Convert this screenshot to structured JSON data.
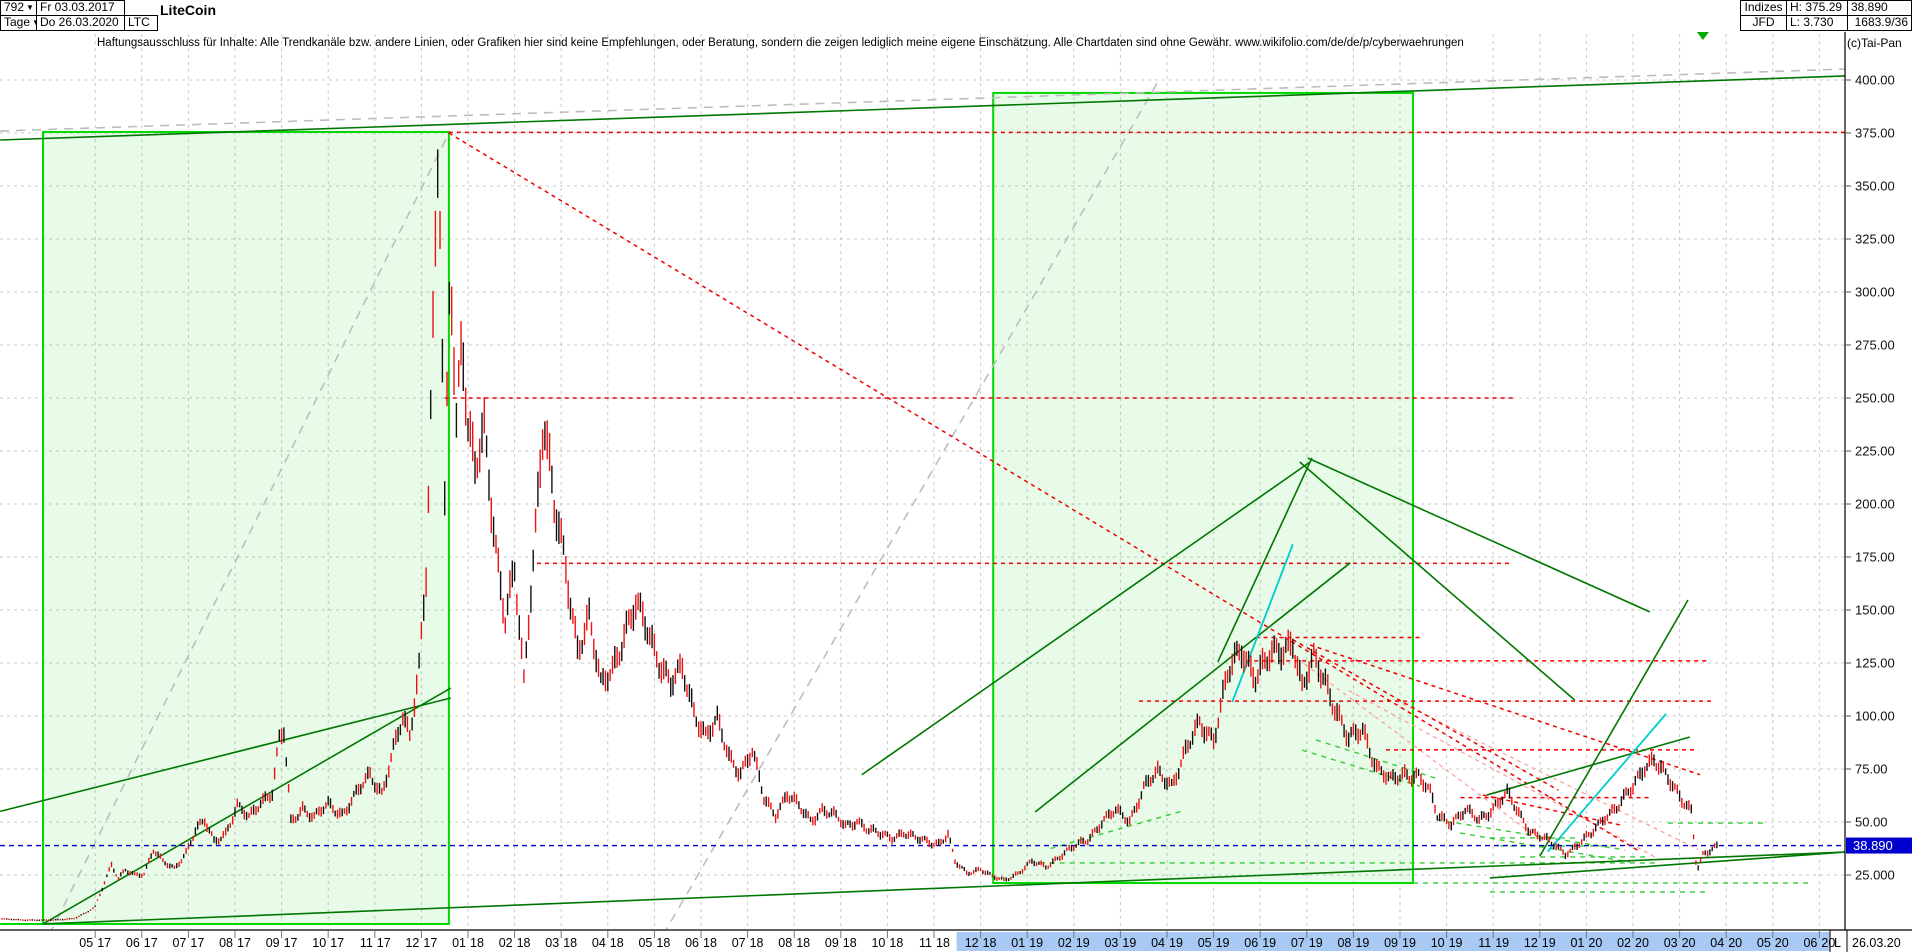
{
  "header": {
    "bars_count": "792",
    "period_label": "Tage",
    "date_from": "Fr 03.03.2017",
    "date_to": "Do 26.03.2020",
    "symbol": "LTC",
    "instrument_name": "LiteCoin",
    "exchange_label": "Indizes",
    "provider_label": "JFD",
    "high_label": "H: 375.29",
    "low_label": "L: 3.730",
    "last_price": "38.890",
    "volume_info": "1683.9/36",
    "copyright": "(c)Tai-Pan"
  },
  "disclaimer": "Haftungsausschluss für Inhalte: Alle Trendkanäle bzw. andere Linien, oder Grafiken hier sind keine Empfehlungen, oder Beratung, sondern die zeigen lediglich meine eigene Einschätzung. Alle Chartdaten sind ohne Gewähr.  www.wikifolio.com/de/de/p/cyberwaehrungen",
  "price_axis": {
    "ticks": [
      {
        "label": "400.00",
        "value": 400
      },
      {
        "label": "375.00",
        "value": 375
      },
      {
        "label": "350.00",
        "value": 350
      },
      {
        "label": "325.00",
        "value": 325
      },
      {
        "label": "300.00",
        "value": 300
      },
      {
        "label": "275.00",
        "value": 275
      },
      {
        "label": "250.00",
        "value": 250
      },
      {
        "label": "225.00",
        "value": 225
      },
      {
        "label": "200.00",
        "value": 200
      },
      {
        "label": "175.00",
        "value": 175
      },
      {
        "label": "150.00",
        "value": 150
      },
      {
        "label": "125.00",
        "value": 125
      },
      {
        "label": "100.00",
        "value": 100
      },
      {
        "label": "75.00",
        "value": 75
      },
      {
        "label": "50.00",
        "value": 50
      },
      {
        "label": "25.000",
        "value": 25
      }
    ],
    "current": {
      "label": "38.890",
      "value": 38.89
    }
  },
  "date_axis": {
    "ticks": [
      "05.17",
      "06.17",
      "07.17",
      "08.17",
      "09.17",
      "10.17",
      "11.17",
      "12.17",
      "01.18",
      "02.18",
      "03.18",
      "04.18",
      "05.18",
      "06.18",
      "07.18",
      "08.18",
      "09.18",
      "10.18",
      "11.18",
      "12.18",
      "01.19",
      "02.19",
      "03.19",
      "04.19",
      "05.19",
      "06.19",
      "07.19",
      "08.19",
      "09.19",
      "10.19",
      "11.19",
      "12.19",
      "01.20",
      "02.20",
      "03.20",
      "04.20",
      "05.20",
      "06.20"
    ],
    "highlight_start_label": "12.18",
    "corner_l": "L",
    "corner_date": "26.03.20"
  },
  "colors": {
    "candle_up": "#111111",
    "candle_down": "#ee1111",
    "grid": "#c8c8c8",
    "box_border": "#00d800",
    "box_fill": "rgba(0,210,0,0.09)",
    "green_dark": "#007700",
    "green_dashed": "#33cc33",
    "red": "#ee0000",
    "pink": "#ff9e9e",
    "gray_dashed": "#bdbdbd",
    "cyan": "#00cccc",
    "blue": "#0000cc",
    "axis_highlight": "#a9c9f5",
    "marker_green": "#00aa00"
  },
  "chart_data": {
    "type": "candlestick",
    "instrument": "LiteCoin (LTC)",
    "exchange": "Indizes / JFD",
    "timeframe": "daily (Tage), 792 bars",
    "date_range": [
      "2017-03-03",
      "2020-03-26"
    ],
    "high": 375.29,
    "low": 3.73,
    "last": 38.89,
    "ylim": [
      0,
      410
    ],
    "grid_step": 25,
    "x_unit": "months since 2017-03-01",
    "price_path": [
      [
        0,
        4.2
      ],
      [
        0.5,
        3.8
      ],
      [
        1.0,
        3.6
      ],
      [
        1.55,
        4.5
      ],
      [
        1.8,
        7
      ],
      [
        2.0,
        10
      ],
      [
        2.2,
        22
      ],
      [
        2.35,
        30
      ],
      [
        2.5,
        23
      ],
      [
        2.65,
        27
      ],
      [
        2.85,
        25
      ],
      [
        3.05,
        26
      ],
      [
        3.25,
        37
      ],
      [
        3.45,
        31
      ],
      [
        3.7,
        28
      ],
      [
        3.95,
        36
      ],
      [
        4.15,
        46
      ],
      [
        4.35,
        50
      ],
      [
        4.55,
        41
      ],
      [
        4.8,
        45
      ],
      [
        5.05,
        57
      ],
      [
        5.3,
        52
      ],
      [
        5.55,
        60
      ],
      [
        5.8,
        64
      ],
      [
        5.95,
        88
      ],
      [
        6.05,
        92
      ],
      [
        6.2,
        50
      ],
      [
        6.45,
        57
      ],
      [
        6.7,
        52
      ],
      [
        7.0,
        58
      ],
      [
        7.3,
        54
      ],
      [
        7.6,
        63
      ],
      [
        7.9,
        72
      ],
      [
        8.15,
        64
      ],
      [
        8.4,
        84
      ],
      [
        8.6,
        98
      ],
      [
        8.75,
        90
      ],
      [
        8.95,
        125
      ],
      [
        9.1,
        170
      ],
      [
        9.25,
        280
      ],
      [
        9.37,
        373
      ],
      [
        9.5,
        195
      ],
      [
        9.62,
        318
      ],
      [
        9.75,
        240
      ],
      [
        9.87,
        285
      ],
      [
        10.0,
        238
      ],
      [
        10.15,
        215
      ],
      [
        10.35,
        232
      ],
      [
        10.6,
        180
      ],
      [
        10.8,
        148
      ],
      [
        11.0,
        168
      ],
      [
        11.2,
        114
      ],
      [
        11.45,
        190
      ],
      [
        11.62,
        245
      ],
      [
        11.85,
        198
      ],
      [
        12.1,
        168
      ],
      [
        12.35,
        133
      ],
      [
        12.6,
        147
      ],
      [
        12.85,
        113
      ],
      [
        13.1,
        123
      ],
      [
        13.35,
        139
      ],
      [
        13.6,
        151
      ],
      [
        13.85,
        141
      ],
      [
        14.1,
        127
      ],
      [
        14.35,
        115
      ],
      [
        14.6,
        121
      ],
      [
        14.85,
        103
      ],
      [
        15.1,
        91
      ],
      [
        15.35,
        97
      ],
      [
        15.6,
        81
      ],
      [
        15.85,
        74
      ],
      [
        16.1,
        83
      ],
      [
        16.35,
        61
      ],
      [
        16.6,
        54
      ],
      [
        16.85,
        63
      ],
      [
        17.1,
        57
      ],
      [
        17.35,
        51
      ],
      [
        17.6,
        56
      ],
      [
        17.85,
        53
      ],
      [
        18.1,
        48
      ],
      [
        18.35,
        51
      ],
      [
        18.6,
        46
      ],
      [
        18.85,
        44
      ],
      [
        19.1,
        43
      ],
      [
        19.35,
        45
      ],
      [
        19.6,
        42
      ],
      [
        19.85,
        41
      ],
      [
        20.1,
        40
      ],
      [
        20.3,
        44
      ],
      [
        20.45,
        31
      ],
      [
        20.7,
        26
      ],
      [
        21.0,
        28
      ],
      [
        21.25,
        24
      ],
      [
        21.5,
        22.5
      ],
      [
        21.8,
        26
      ],
      [
        22.1,
        31
      ],
      [
        22.4,
        29
      ],
      [
        22.7,
        34
      ],
      [
        23.0,
        38
      ],
      [
        23.3,
        42
      ],
      [
        23.6,
        50
      ],
      [
        23.9,
        55
      ],
      [
        24.2,
        51
      ],
      [
        24.5,
        66
      ],
      [
        24.8,
        73
      ],
      [
        25.1,
        68
      ],
      [
        25.4,
        83
      ],
      [
        25.7,
        96
      ],
      [
        26.0,
        90
      ],
      [
        26.3,
        119
      ],
      [
        26.6,
        131
      ],
      [
        26.9,
        120
      ],
      [
        27.2,
        127
      ],
      [
        27.5,
        131
      ],
      [
        27.7,
        137
      ],
      [
        27.9,
        113
      ],
      [
        28.15,
        126
      ],
      [
        28.4,
        117
      ],
      [
        28.65,
        102
      ],
      [
        28.9,
        88
      ],
      [
        29.2,
        94
      ],
      [
        29.5,
        76
      ],
      [
        29.8,
        69
      ],
      [
        30.1,
        73
      ],
      [
        30.4,
        72
      ],
      [
        30.65,
        63
      ],
      [
        30.8,
        53
      ],
      [
        31.1,
        50
      ],
      [
        31.4,
        55
      ],
      [
        31.7,
        51
      ],
      [
        32.0,
        57
      ],
      [
        32.3,
        63
      ],
      [
        32.55,
        54
      ],
      [
        32.8,
        46
      ],
      [
        33.1,
        42
      ],
      [
        33.3,
        39
      ],
      [
        33.55,
        35.5
      ],
      [
        33.8,
        39
      ],
      [
        34.1,
        44
      ],
      [
        34.4,
        53
      ],
      [
        34.7,
        58
      ],
      [
        35.0,
        66
      ],
      [
        35.25,
        77
      ],
      [
        35.45,
        80
      ],
      [
        35.65,
        73
      ],
      [
        35.9,
        65
      ],
      [
        36.1,
        60
      ],
      [
        36.25,
        56
      ],
      [
        36.37,
        27
      ],
      [
        36.5,
        34
      ],
      [
        36.65,
        36
      ],
      [
        36.83,
        38.9
      ]
    ],
    "annotations": {
      "boxes": [
        {
          "t1": 0.88,
          "p1": 1.9,
          "t2": 9.59,
          "p2": 375.5
        },
        {
          "t1": 21.27,
          "p1": 21.2,
          "t2": 30.28,
          "p2": 393.9
        }
      ],
      "hlines_red": [
        [
          9.59,
          375.3,
          39.6
        ],
        [
          9.5,
          250,
          32.5
        ],
        [
          11.48,
          172,
          32.4
        ],
        [
          26.9,
          137,
          30.5
        ],
        [
          26.7,
          126,
          36.65
        ],
        [
          24.4,
          107,
          36.7
        ],
        [
          29.7,
          84,
          36.4
        ],
        [
          31.3,
          61.5,
          35.4
        ]
      ],
      "lines_red": [
        [
          9.59,
          375,
          35.15,
          36
        ],
        [
          27.7,
          136,
          33.4,
          65
        ],
        [
          28.07,
          133.5,
          36.44,
          72.3
        ],
        [
          31.78,
          62.7,
          34.72,
          48.6
        ]
      ],
      "lines_pink": [
        [
          27.68,
          129,
          33.0,
          41.7
        ],
        [
          28.9,
          112,
          35.6,
          32
        ],
        [
          29.9,
          107.5,
          36.4,
          37
        ]
      ],
      "lines_gray": [
        [
          0.86,
          -10,
          9.59,
          374.9
        ],
        [
          14.01,
          -10,
          24.85,
          400.9
        ],
        [
          -0.04,
          375.9,
          39.6,
          405.2
        ]
      ],
      "lines_green": [
        [
          -0.04,
          371.7,
          39.55,
          401.9
        ],
        [
          0.88,
          1.9,
          9.63,
          113.2
        ],
        [
          -0.04,
          55,
          9.63,
          108.5
        ],
        [
          0.88,
          1.9,
          39.55,
          35.8
        ],
        [
          18.45,
          72.3,
          28.07,
          219.8
        ],
        [
          22.17,
          54.7,
          28.93,
          172.2
        ],
        [
          26.09,
          125.5,
          28.11,
          221.7
        ],
        [
          27.85,
          219.8,
          33.75,
          107.5
        ],
        [
          28.02,
          221.7,
          35.36,
          149.1
        ],
        [
          31.86,
          62.7,
          36.22,
          90.1
        ],
        [
          33.0,
          33.9,
          36.18,
          154.7
        ],
        [
          31.93,
          23.6,
          39.55,
          35.8
        ]
      ],
      "lines_green_bright": [
        [
          -0.04,
          1.9,
          0.88,
          1.9
        ]
      ],
      "lines_green_dashed": [
        [
          27.9,
          83.9,
          30.43,
          66.9
        ],
        [
          28.2,
          88.7,
          30.76,
          70.7
        ],
        [
          30.79,
          51,
          34.83,
          36.8
        ],
        [
          31.29,
          44.8,
          34.93,
          31.1
        ],
        [
          35.75,
          49.5,
          37.79,
          49.5
        ],
        [
          31.93,
          42.5,
          33.86,
          42.5
        ],
        [
          32.15,
          38.7,
          34.55,
          38.7
        ],
        [
          32.58,
          33.5,
          35.32,
          33.5
        ],
        [
          22.27,
          30.7,
          35.58,
          30.7
        ],
        [
          30.28,
          21.2,
          38.8,
          21.2
        ],
        [
          31.93,
          17,
          36.65,
          17
        ],
        [
          22.5,
          37.5,
          25.3,
          55
        ]
      ],
      "lines_cyan": [
        [
          26.4,
          106.6,
          27.7,
          181
        ],
        [
          33.17,
          36,
          35.71,
          101
        ]
      ],
      "hline_blue": {
        "p": 38.89
      },
      "marker_triangle": {
        "t": 36.5
      }
    }
  }
}
